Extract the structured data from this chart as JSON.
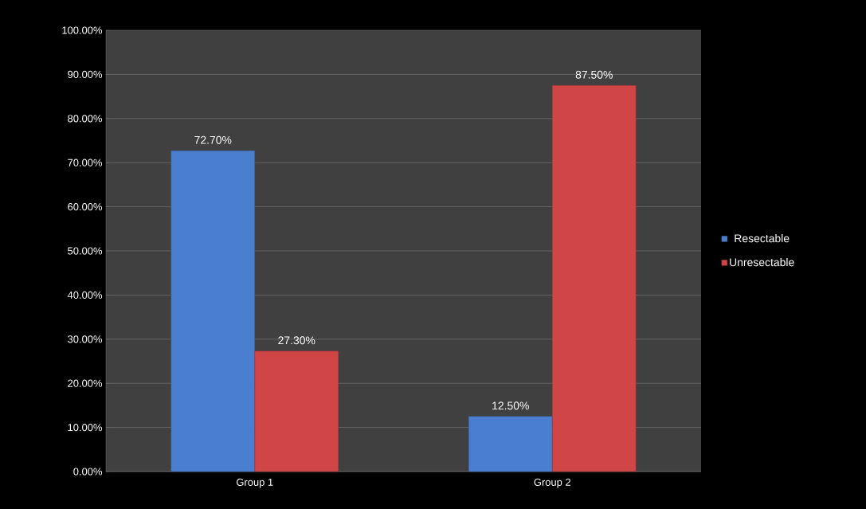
{
  "chart_data": {
    "type": "bar",
    "categories": [
      "Group 1",
      "Group 2"
    ],
    "series": [
      {
        "name": "Resectable",
        "color": "#4a7fd0",
        "values": [
          72.7,
          12.5
        ],
        "value_labels": [
          "72.70%",
          "12.50%"
        ]
      },
      {
        "name": "Unresectable",
        "color": "#d04545",
        "values": [
          27.3,
          87.5
        ],
        "value_labels": [
          "27.30%",
          "87.50%"
        ]
      }
    ],
    "ylim": [
      0,
      100
    ],
    "yticks": [
      {
        "value": 0,
        "label": "0.00%"
      },
      {
        "value": 10,
        "label": "10.00%"
      },
      {
        "value": 20,
        "label": "20.00%"
      },
      {
        "value": 30,
        "label": "30.00%"
      },
      {
        "value": 40,
        "label": "40.00%"
      },
      {
        "value": 50,
        "label": "50.00%"
      },
      {
        "value": 60,
        "label": "60.00%"
      },
      {
        "value": 70,
        "label": "70.00%"
      },
      {
        "value": 80,
        "label": "80.00%"
      },
      {
        "value": 90,
        "label": "90.00%"
      },
      {
        "value": 100,
        "label": "100.00%"
      }
    ],
    "grid": "y",
    "legend": "right"
  }
}
